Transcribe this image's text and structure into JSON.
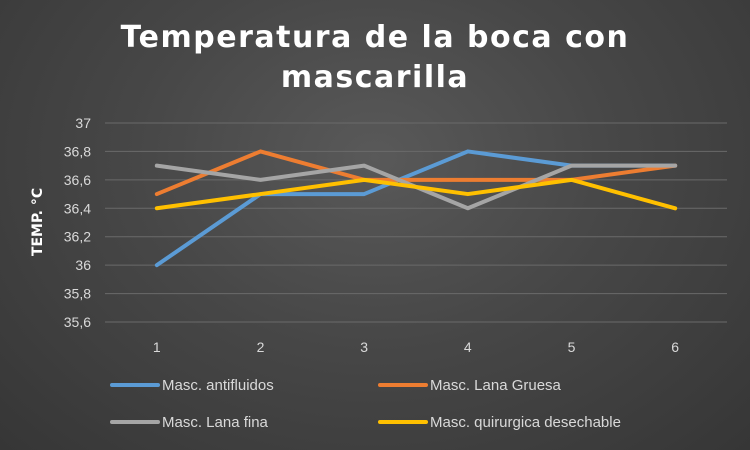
{
  "chart_data": {
    "type": "line",
    "title_line1": "Temperatura de la boca con",
    "title_line2": "mascarilla",
    "ylabel": "TEMP. °C",
    "xlabel": "",
    "x": [
      1,
      2,
      3,
      4,
      5,
      6
    ],
    "ylim": [
      35.6,
      37
    ],
    "yticks": [
      "35,6",
      "35,8",
      "36",
      "36,2",
      "36,4",
      "36,6",
      "36,8",
      "37"
    ],
    "grid": true,
    "legend_position": "bottom",
    "series": [
      {
        "name": "Masc. antifluidos",
        "color": "#5b9bd5",
        "values": [
          36.0,
          36.5,
          36.5,
          36.8,
          36.7,
          36.7
        ]
      },
      {
        "name": "Masc. Lana Gruesa",
        "color": "#ed7d31",
        "values": [
          36.5,
          36.8,
          36.6,
          36.6,
          36.6,
          36.7
        ]
      },
      {
        "name": "Masc. Lana fina",
        "color": "#a5a5a5",
        "values": [
          36.7,
          36.6,
          36.7,
          36.4,
          36.7,
          36.7
        ]
      },
      {
        "name": "Masc. quirurgica desechable",
        "color": "#ffc000",
        "values": [
          36.4,
          36.5,
          36.6,
          36.5,
          36.6,
          36.4
        ]
      }
    ]
  }
}
